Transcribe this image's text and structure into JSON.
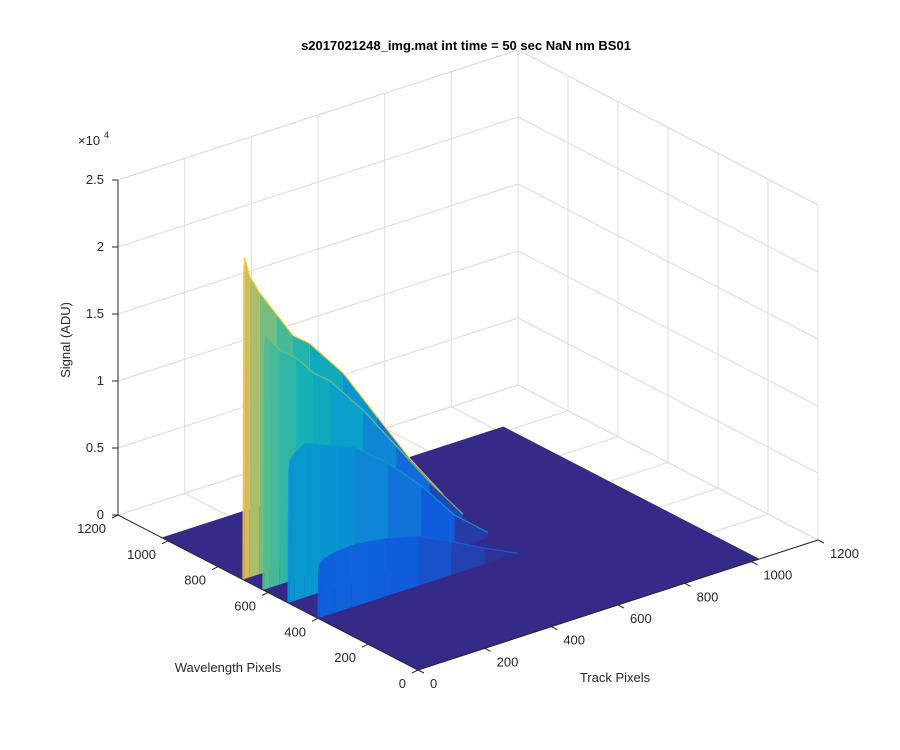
{
  "chart_data": {
    "type": "surface",
    "title": "s2017021248_img.mat int time = 50 sec  NaN nm BS01",
    "xlabel": "Track Pixels",
    "ylabel": "Wavelength Pixels",
    "zlabel": "Signal (ADU)",
    "z_exponent_label": "×10",
    "z_exponent_power": "4",
    "xlim": [
      0,
      1200
    ],
    "ylim": [
      0,
      1200
    ],
    "zlim": [
      0,
      25000
    ],
    "x_ticks": [
      "0",
      "200",
      "400",
      "600",
      "800",
      "1000",
      "1200"
    ],
    "y_ticks": [
      "0",
      "200",
      "400",
      "600",
      "800",
      "1000",
      "1200"
    ],
    "z_ticks": [
      "0",
      "0.5",
      "1",
      "1.5",
      "2",
      "2.5"
    ],
    "grid": true,
    "colormap": "parula",
    "peak": {
      "track_pixel": 5,
      "wavelength_pixel": 680,
      "signal": 24000
    },
    "surface_extent": {
      "track_pixels": [
        0,
        1024
      ],
      "wavelength_pixels": [
        0,
        1024
      ]
    },
    "cross_sections": [
      {
        "wavelength_pixel": 1024,
        "track_pixels": [
          0,
          100,
          200,
          300,
          400,
          500,
          600,
          700,
          800,
          900,
          1000,
          1024
        ],
        "signal": [
          0,
          0,
          0,
          0,
          0,
          0,
          0,
          0,
          0,
          0,
          0,
          0
        ]
      },
      {
        "wavelength_pixel": 900,
        "track_pixels": [
          0,
          100,
          200,
          300,
          400,
          500,
          600,
          700,
          800,
          900,
          1000,
          1024
        ],
        "signal": [
          0,
          0,
          0,
          0,
          0,
          0,
          0,
          0,
          0,
          0,
          0,
          0
        ]
      },
      {
        "wavelength_pixel": 780,
        "track_pixels": [
          0,
          100,
          200,
          300,
          400,
          500,
          600,
          700,
          800,
          900,
          1000,
          1024
        ],
        "signal": [
          0,
          0,
          0,
          0,
          0,
          0,
          0,
          0,
          0,
          0,
          0,
          0
        ]
      },
      {
        "wavelength_pixel": 700,
        "track_pixels": [
          0,
          2,
          5,
          20,
          50,
          100,
          150,
          200,
          300,
          400,
          500,
          600
        ],
        "signal": [
          0,
          23000,
          24000,
          22500,
          21000,
          19000,
          17000,
          16000,
          13000,
          9000,
          5000,
          1500
        ]
      },
      {
        "wavelength_pixel": 620,
        "track_pixels": [
          0,
          2,
          5,
          20,
          50,
          100,
          150,
          200,
          300,
          400,
          500,
          600
        ],
        "signal": [
          0,
          18500,
          19000,
          18500,
          17500,
          16500,
          15000,
          14000,
          11000,
          7500,
          4000,
          800
        ]
      },
      {
        "wavelength_pixel": 520,
        "track_pixels": [
          0,
          2,
          5,
          20,
          50,
          100,
          150,
          200,
          300,
          400,
          500,
          600
        ],
        "signal": [
          0,
          9500,
          10500,
          11000,
          11500,
          11000,
          10500,
          10000,
          8000,
          5500,
          2500,
          400
        ]
      },
      {
        "wavelength_pixel": 400,
        "track_pixels": [
          0,
          2,
          5,
          20,
          50,
          100,
          150,
          200,
          300,
          400,
          500,
          600
        ],
        "signal": [
          0,
          3500,
          4000,
          4300,
          4500,
          4600,
          4500,
          4300,
          3700,
          2500,
          1200,
          0
        ]
      },
      {
        "wavelength_pixel": 300,
        "track_pixels": [
          0,
          100,
          200,
          300,
          400,
          500,
          600,
          700,
          800,
          900,
          1000,
          1024
        ],
        "signal": [
          0,
          0,
          0,
          0,
          0,
          0,
          0,
          0,
          0,
          0,
          0,
          0
        ]
      },
      {
        "wavelength_pixel": 0,
        "track_pixels": [
          0,
          100,
          200,
          300,
          400,
          500,
          600,
          700,
          800,
          900,
          1000,
          1024
        ],
        "signal": [
          0,
          0,
          0,
          0,
          0,
          0,
          0,
          0,
          0,
          0,
          0,
          0
        ]
      }
    ]
  }
}
